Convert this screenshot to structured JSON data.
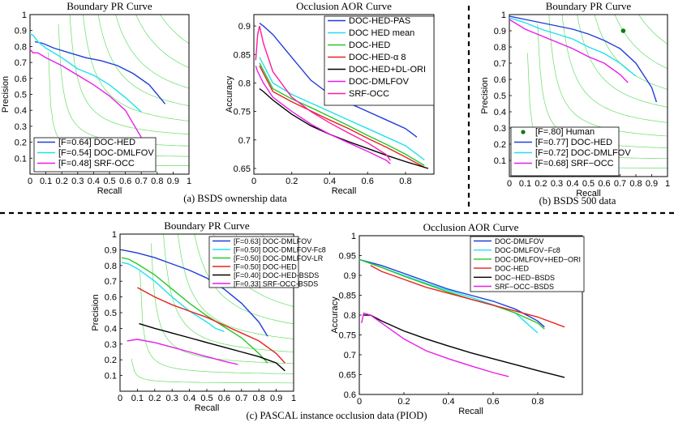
{
  "captions": {
    "a": "(a) BSDS ownership data",
    "b": "(b) BSDS 500 data",
    "c": "(c) PASCAL instance occlusion data (PIOD)"
  },
  "chart_data": [
    {
      "id": "pr1",
      "type": "line",
      "title": "Boundary PR Curve",
      "xlabel": "Recall",
      "ylabel": "Precision",
      "xlim": [
        0,
        1
      ],
      "ylim": [
        0,
        1
      ],
      "xticks": [
        "0",
        "0.1",
        "0.2",
        "0.3",
        "0.4",
        "0.5",
        "0.6",
        "0.7",
        "0.8",
        "0.9",
        "1"
      ],
      "yticks": [
        "0.1",
        "0.2",
        "0.3",
        "0.4",
        "0.5",
        "0.6",
        "0.7",
        "0.8",
        "0.9",
        "1"
      ],
      "legend": "bottom-left",
      "series": [
        {
          "name": "[F=0.64] DOC-HED",
          "color": "#1f3fd8",
          "x": [
            0.03,
            0.08,
            0.15,
            0.25,
            0.35,
            0.45,
            0.55,
            0.65,
            0.75,
            0.85
          ],
          "y": [
            0.83,
            0.82,
            0.79,
            0.76,
            0.73,
            0.71,
            0.68,
            0.63,
            0.56,
            0.44
          ]
        },
        {
          "name": "[F=0.54] DOC-DMLFOV",
          "color": "#22e0f0",
          "x": [
            0.0,
            0.02,
            0.05,
            0.1,
            0.2,
            0.3,
            0.4,
            0.5,
            0.6,
            0.7
          ],
          "y": [
            0.88,
            0.87,
            0.83,
            0.79,
            0.73,
            0.66,
            0.62,
            0.56,
            0.48,
            0.39
          ]
        },
        {
          "name": "[F=0.48] SRF-OCC",
          "color": "#e81de8",
          "x": [
            0.0,
            0.02,
            0.05,
            0.1,
            0.2,
            0.3,
            0.4,
            0.5,
            0.6,
            0.7
          ],
          "y": [
            0.78,
            0.76,
            0.76,
            0.73,
            0.68,
            0.62,
            0.56,
            0.49,
            0.4,
            0.23
          ]
        }
      ]
    },
    {
      "id": "aor1",
      "type": "line",
      "title": "Occlusion AOR Curve",
      "xlabel": "Recall",
      "ylabel": "Accuracy",
      "xlim": [
        0,
        0.95
      ],
      "ylim": [
        0.64,
        0.92
      ],
      "xticks": [
        "0",
        "0.2",
        "0.4",
        "0.6",
        "0.8"
      ],
      "yticks": [
        "0.65",
        "0.7",
        "0.75",
        "0.8",
        "0.85",
        "0.9"
      ],
      "legend": "top-right",
      "series": [
        {
          "name": "DOC-HED-PAS",
          "color": "#1f3fd8",
          "x": [
            0.03,
            0.05,
            0.1,
            0.2,
            0.3,
            0.4,
            0.5,
            0.6,
            0.7,
            0.8,
            0.86
          ],
          "y": [
            0.905,
            0.9,
            0.885,
            0.845,
            0.805,
            0.78,
            0.765,
            0.75,
            0.735,
            0.72,
            0.705
          ]
        },
        {
          "name": "DOC HED mean",
          "color": "#22e0f0",
          "x": [
            0.03,
            0.1,
            0.2,
            0.3,
            0.4,
            0.5,
            0.6,
            0.7,
            0.8,
            0.9
          ],
          "y": [
            0.845,
            0.8,
            0.78,
            0.765,
            0.75,
            0.735,
            0.72,
            0.705,
            0.69,
            0.665
          ]
        },
        {
          "name": "DOC-HED",
          "color": "#28c828",
          "x": [
            0.03,
            0.1,
            0.2,
            0.3,
            0.4,
            0.5,
            0.6,
            0.7,
            0.8,
            0.9
          ],
          "y": [
            0.835,
            0.79,
            0.772,
            0.757,
            0.741,
            0.725,
            0.708,
            0.692,
            0.675,
            0.655
          ]
        },
        {
          "name": "DOC-HED-α 8",
          "color": "#e82222",
          "x": [
            0.03,
            0.1,
            0.2,
            0.3,
            0.4,
            0.5,
            0.6,
            0.7,
            0.8,
            0.9
          ],
          "y": [
            0.83,
            0.785,
            0.767,
            0.751,
            0.735,
            0.72,
            0.703,
            0.687,
            0.67,
            0.652
          ]
        },
        {
          "name": "DOC-HED+DL-ORI",
          "color": "#000000",
          "x": [
            0.03,
            0.05,
            0.1,
            0.2,
            0.3,
            0.4,
            0.5,
            0.6,
            0.7,
            0.8,
            0.92
          ],
          "y": [
            0.79,
            0.785,
            0.77,
            0.745,
            0.725,
            0.71,
            0.697,
            0.685,
            0.673,
            0.662,
            0.65
          ]
        },
        {
          "name": "DOC-DMLFOV",
          "color": "#e81de8",
          "x": [
            0.01,
            0.02,
            0.05,
            0.1,
            0.2,
            0.3,
            0.4,
            0.5,
            0.6,
            0.7,
            0.72
          ],
          "y": [
            0.83,
            0.82,
            0.8,
            0.775,
            0.75,
            0.728,
            0.71,
            0.695,
            0.68,
            0.664,
            0.658
          ]
        },
        {
          "name": "SRF-OCC",
          "color": "#ff1aa0",
          "x": [
            0.01,
            0.02,
            0.03,
            0.05,
            0.1,
            0.2,
            0.3,
            0.4,
            0.5,
            0.6,
            0.7,
            0.72
          ],
          "y": [
            0.84,
            0.885,
            0.9,
            0.87,
            0.82,
            0.775,
            0.75,
            0.73,
            0.712,
            0.695,
            0.674,
            0.664
          ]
        }
      ]
    },
    {
      "id": "pr2",
      "type": "line",
      "title": "Boundary PR Curve",
      "xlabel": "Recall",
      "ylabel": "Precision",
      "xlim": [
        0,
        1
      ],
      "ylim": [
        0,
        1
      ],
      "xticks": [
        "0",
        "0.1",
        "0.2",
        "0.3",
        "0.4",
        "0.5",
        "0.6",
        "0.7",
        "0.8",
        "0.9",
        "1"
      ],
      "yticks": [
        "0.1",
        "0.2",
        "0.3",
        "0.4",
        "0.5",
        "0.6",
        "0.7",
        "0.8",
        "0.9",
        "1"
      ],
      "legend": "bottom-left",
      "human_point": {
        "x": 0.72,
        "y": 0.9
      },
      "legend_extra": "[F=.80] Human",
      "series": [
        {
          "name": "[F=0.77] DOC-HED",
          "color": "#1f3fd8",
          "x": [
            0.0,
            0.1,
            0.2,
            0.3,
            0.4,
            0.5,
            0.6,
            0.7,
            0.8,
            0.9,
            0.93
          ],
          "y": [
            0.99,
            0.97,
            0.95,
            0.93,
            0.91,
            0.88,
            0.84,
            0.79,
            0.7,
            0.55,
            0.46
          ]
        },
        {
          "name": "[F=0.72] DOC-DMLFOV",
          "color": "#22e0f0",
          "x": [
            0.0,
            0.1,
            0.2,
            0.3,
            0.4,
            0.5,
            0.6,
            0.7,
            0.8
          ],
          "y": [
            0.98,
            0.95,
            0.91,
            0.88,
            0.85,
            0.8,
            0.76,
            0.7,
            0.62
          ]
        },
        {
          "name": "[F=0.68] SRF−OCC",
          "color": "#e81de8",
          "x": [
            0.0,
            0.1,
            0.2,
            0.3,
            0.4,
            0.5,
            0.6,
            0.7,
            0.75
          ],
          "y": [
            0.97,
            0.91,
            0.87,
            0.83,
            0.79,
            0.74,
            0.7,
            0.63,
            0.58
          ]
        }
      ]
    },
    {
      "id": "pr3",
      "type": "line",
      "title": "Boundary PR Curve",
      "xlabel": "Recall",
      "ylabel": "Precision",
      "xlim": [
        0,
        1
      ],
      "ylim": [
        0,
        1
      ],
      "xticks": [
        "0",
        "0.1",
        "0.2",
        "0.3",
        "0.4",
        "0.5",
        "0.6",
        "0.7",
        "0.8",
        "0.9",
        "1"
      ],
      "yticks": [
        "0.1",
        "0.2",
        "0.3",
        "0.4",
        "0.5",
        "0.6",
        "0.7",
        "0.8",
        "0.9",
        "1"
      ],
      "legend": "top-right",
      "series": [
        {
          "name": "[F=0.63] DOC-DMLFOV",
          "color": "#1f3fd8",
          "x": [
            0.01,
            0.1,
            0.2,
            0.3,
            0.4,
            0.5,
            0.6,
            0.7,
            0.8,
            0.85
          ],
          "y": [
            0.9,
            0.88,
            0.85,
            0.81,
            0.77,
            0.72,
            0.65,
            0.56,
            0.44,
            0.35
          ]
        },
        {
          "name": "[F=0.50] DOC-DMLFOV-Fc8",
          "color": "#22e0f0",
          "x": [
            0.01,
            0.05,
            0.1,
            0.2,
            0.3,
            0.4,
            0.5,
            0.55,
            0.6
          ],
          "y": [
            0.82,
            0.81,
            0.78,
            0.7,
            0.6,
            0.51,
            0.44,
            0.4,
            0.38
          ]
        },
        {
          "name": "[F=0.50] DOC-DMLFOV-LR",
          "color": "#28c828",
          "x": [
            0.01,
            0.05,
            0.1,
            0.2,
            0.3,
            0.4,
            0.5,
            0.6,
            0.7,
            0.8,
            0.85
          ],
          "y": [
            0.85,
            0.84,
            0.81,
            0.74,
            0.65,
            0.56,
            0.48,
            0.41,
            0.34,
            0.24,
            0.18
          ]
        },
        {
          "name": "[F=0.50] DOC-HED",
          "color": "#e82222",
          "x": [
            0.1,
            0.2,
            0.3,
            0.4,
            0.5,
            0.6,
            0.7,
            0.8,
            0.9,
            0.95
          ],
          "y": [
            0.66,
            0.6,
            0.55,
            0.51,
            0.47,
            0.42,
            0.37,
            0.32,
            0.24,
            0.18
          ]
        },
        {
          "name": "[F=0.40] DOC-HED-BSDS",
          "color": "#000000",
          "x": [
            0.11,
            0.2,
            0.3,
            0.4,
            0.5,
            0.6,
            0.7,
            0.8,
            0.9,
            0.95
          ],
          "y": [
            0.43,
            0.4,
            0.37,
            0.34,
            0.31,
            0.28,
            0.25,
            0.22,
            0.18,
            0.13
          ]
        },
        {
          "name": "[F=0.33] SRF-OCC-BSDS",
          "color": "#e81de8",
          "x": [
            0.04,
            0.1,
            0.2,
            0.3,
            0.4,
            0.5,
            0.6,
            0.68
          ],
          "y": [
            0.32,
            0.33,
            0.31,
            0.28,
            0.25,
            0.22,
            0.19,
            0.17
          ]
        }
      ]
    },
    {
      "id": "aor2",
      "type": "line",
      "title": "Occlusion AOR Curve",
      "xlabel": "Recall",
      "ylabel": "Accuracy",
      "xlim": [
        0,
        1
      ],
      "ylim": [
        0.6,
        1
      ],
      "xticks": [
        "0",
        "0.2",
        "0.4",
        "0.6",
        "0.8"
      ],
      "yticks": [
        "0.6",
        "0.65",
        "0.7",
        "0.75",
        "0.8",
        "0.85",
        "0.9",
        "0.95",
        "1"
      ],
      "legend": "top-right",
      "series": [
        {
          "name": "DOC-DMLFOV",
          "color": "#1f3fd8",
          "x": [
            0.0,
            0.1,
            0.2,
            0.3,
            0.4,
            0.5,
            0.6,
            0.7,
            0.8,
            0.83
          ],
          "y": [
            0.94,
            0.925,
            0.905,
            0.885,
            0.865,
            0.85,
            0.835,
            0.815,
            0.785,
            0.77
          ]
        },
        {
          "name": "DOC-DMLFOV−Fc8",
          "color": "#22e0f0",
          "x": [
            0.0,
            0.1,
            0.2,
            0.3,
            0.4,
            0.5,
            0.6,
            0.7,
            0.76,
            0.8
          ],
          "y": [
            0.94,
            0.92,
            0.9,
            0.88,
            0.862,
            0.845,
            0.826,
            0.805,
            0.775,
            0.755
          ]
        },
        {
          "name": "DOC-DMLFOV+HED−ORI",
          "color": "#28c828",
          "x": [
            0.0,
            0.1,
            0.2,
            0.3,
            0.4,
            0.5,
            0.6,
            0.7,
            0.8,
            0.83
          ],
          "y": [
            0.94,
            0.92,
            0.898,
            0.878,
            0.858,
            0.84,
            0.825,
            0.805,
            0.78,
            0.765
          ]
        },
        {
          "name": "DOC-HED",
          "color": "#e82222",
          "x": [
            0.05,
            0.1,
            0.2,
            0.3,
            0.4,
            0.5,
            0.6,
            0.7,
            0.8,
            0.92
          ],
          "y": [
            0.925,
            0.91,
            0.89,
            0.87,
            0.855,
            0.84,
            0.825,
            0.81,
            0.795,
            0.77
          ]
        },
        {
          "name": "DOC−HED−BSDS",
          "color": "#000000",
          "x": [
            0.02,
            0.05,
            0.1,
            0.2,
            0.3,
            0.4,
            0.5,
            0.6,
            0.7,
            0.8,
            0.92
          ],
          "y": [
            0.8,
            0.8,
            0.785,
            0.76,
            0.74,
            0.722,
            0.705,
            0.69,
            0.675,
            0.66,
            0.643
          ]
        },
        {
          "name": "SRF−OCC−BSDS",
          "color": "#e81de8",
          "x": [
            0.01,
            0.02,
            0.05,
            0.1,
            0.2,
            0.3,
            0.4,
            0.5,
            0.6,
            0.67
          ],
          "y": [
            0.78,
            0.805,
            0.8,
            0.78,
            0.74,
            0.71,
            0.69,
            0.672,
            0.655,
            0.645
          ]
        }
      ]
    }
  ]
}
